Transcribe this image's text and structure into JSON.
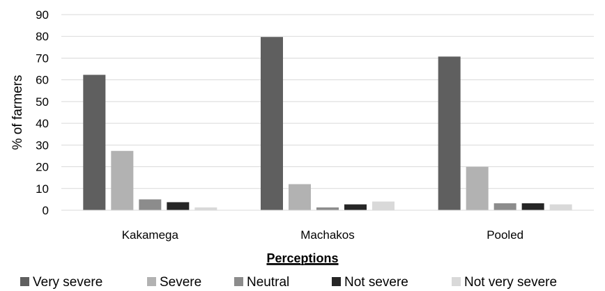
{
  "chart_data": {
    "type": "bar",
    "categories": [
      "Kakamega",
      "Machakos",
      "Pooled"
    ],
    "series": [
      {
        "name": "Very severe",
        "color": "#5f5f5f",
        "values": [
          62.3,
          79.7,
          70.7
        ]
      },
      {
        "name": "Severe",
        "color": "#b2b2b2",
        "values": [
          27.3,
          12.0,
          20.0
        ]
      },
      {
        "name": "Neutral",
        "color": "#8c8c8c",
        "values": [
          5.0,
          1.3,
          3.2
        ]
      },
      {
        "name": "Not severe",
        "color": "#262626",
        "values": [
          3.7,
          2.7,
          3.2
        ]
      },
      {
        "name": "Not very severe",
        "color": "#d9d9d9",
        "values": [
          1.3,
          4.0,
          2.7
        ]
      }
    ],
    "xlabel": "Perceptions",
    "ylabel": "% of farmers",
    "ylim": [
      0,
      90
    ],
    "yticks": [
      0,
      10,
      20,
      30,
      40,
      50,
      60,
      70,
      80,
      90
    ],
    "grid": true,
    "legend_position": "bottom"
  }
}
